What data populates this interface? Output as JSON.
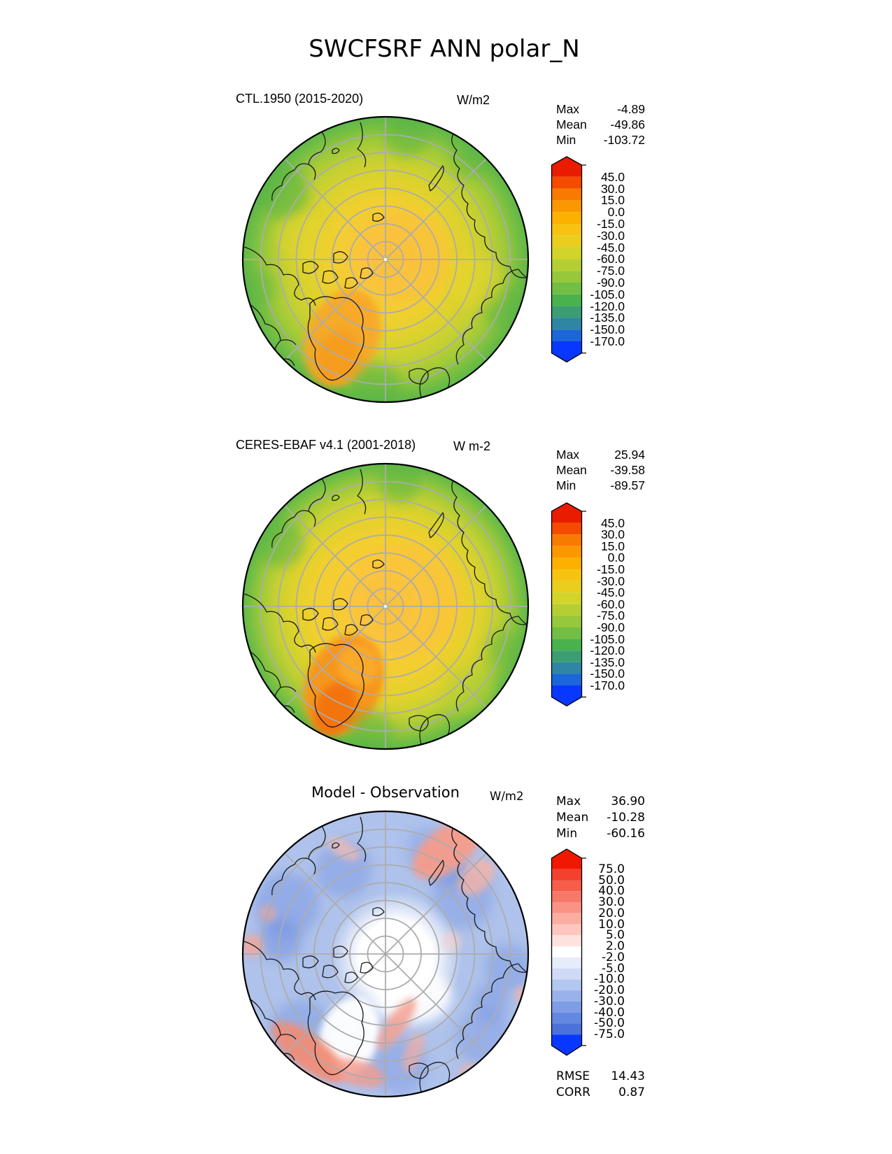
{
  "title": "SWCFSRF ANN polar_N",
  "panels": [
    {
      "id": "model",
      "title": "CTL.1950 (2015-2020)",
      "units": "W/m2",
      "stats": [
        {
          "label": "Max",
          "value": "-4.89"
        },
        {
          "label": "Mean",
          "value": "-49.86"
        },
        {
          "label": "Min",
          "value": "-103.72"
        }
      ],
      "colorbar": {
        "ticks": [
          "45.0",
          "30.0",
          "15.0",
          "0.0",
          "-15.0",
          "-30.0",
          "-45.0",
          "-60.0",
          "-75.0",
          "-90.0",
          "-105.0",
          "-120.0",
          "-135.0",
          "-150.0",
          "-170.0"
        ],
        "colors": [
          "#EA1C00",
          "#F44B00",
          "#F97A00",
          "#FB9700",
          "#FCB100",
          "#F7C313",
          "#E9CE1E",
          "#D2D42A",
          "#B5CF33",
          "#97C83B",
          "#72BE44",
          "#4AB24D",
          "#3B9E73",
          "#2E86A4",
          "#1B67D9",
          "#0838FF"
        ]
      }
    },
    {
      "id": "observation",
      "title": "CERES-EBAF v4.1 (2001-2018)",
      "units": "W m-2",
      "stats": [
        {
          "label": "Max",
          "value": "25.94"
        },
        {
          "label": "Mean",
          "value": "-39.58"
        },
        {
          "label": "Min",
          "value": "-89.57"
        }
      ],
      "colorbar": {
        "ticks": [
          "45.0",
          "30.0",
          "15.0",
          "0.0",
          "-15.0",
          "-30.0",
          "-45.0",
          "-60.0",
          "-75.0",
          "-90.0",
          "-105.0",
          "-120.0",
          "-135.0",
          "-150.0",
          "-170.0"
        ],
        "colors": [
          "#EA1C00",
          "#F44B00",
          "#F97A00",
          "#FB9700",
          "#FCB100",
          "#F7C313",
          "#E9CE1E",
          "#D2D42A",
          "#B5CF33",
          "#97C83B",
          "#72BE44",
          "#4AB24D",
          "#3B9E73",
          "#2E86A4",
          "#1B67D9",
          "#0838FF"
        ]
      }
    },
    {
      "id": "difference",
      "title": "Model - Observation",
      "units": "W/m2",
      "stats": [
        {
          "label": "Max",
          "value": "36.90"
        },
        {
          "label": "Mean",
          "value": "-10.28"
        },
        {
          "label": "Min",
          "value": "-60.16"
        }
      ],
      "colorbar": {
        "ticks": [
          "75.0",
          "50.0",
          "40.0",
          "30.0",
          "20.0",
          "10.0",
          "5.0",
          "2.0",
          "-2.0",
          "-5.0",
          "-10.0",
          "-20.0",
          "-30.0",
          "-40.0",
          "-50.0",
          "-75.0"
        ],
        "colors": [
          "#F01800",
          "#F4402F",
          "#F65D4B",
          "#F87868",
          "#FA9386",
          "#FBADA2",
          "#FDC7BF",
          "#FEE2DD",
          "#FFFFFF",
          "#E6ECFA",
          "#CFDBF6",
          "#B4C7F0",
          "#99B2EB",
          "#7E9DE5",
          "#6388E0",
          "#4A72DA",
          "#0838FF"
        ],
        "metrics": [
          {
            "label": "RMSE",
            "value": "14.43"
          },
          {
            "label": "CORR",
            "value": "0.87"
          }
        ]
      }
    }
  ],
  "chart_data": [
    {
      "type": "heatmap",
      "subtype": "north-polar stereographic contour map",
      "figure_title": "SWCFSRF ANN polar_N",
      "variable": "SWCFSRF",
      "season": "ANN",
      "region": "polar_N",
      "panel": "model",
      "title": "CTL.1950 (2015-2020)",
      "units": "W/m2",
      "stats": {
        "max": -4.89,
        "mean": -49.86,
        "min": -103.72
      },
      "levels": [
        45.0,
        30.0,
        15.0,
        0.0,
        -15.0,
        -30.0,
        -45.0,
        -60.0,
        -75.0,
        -90.0,
        -105.0,
        -120.0,
        -135.0,
        -150.0,
        -170.0
      ],
      "palette": "rainbow red(high)->yellow->green->blue(low), extended both ends",
      "description": "Arctic map: amber/orange (~-30 to -45) over central Arctic Ocean and Greenland, yellow mid-latitudes, green (~-60 to -90) toward outer rim"
    },
    {
      "type": "heatmap",
      "subtype": "north-polar stereographic contour map",
      "panel": "observation",
      "title": "CERES-EBAF v4.1 (2001-2018)",
      "units": "W m-2",
      "stats": {
        "max": 25.94,
        "mean": -39.58,
        "min": -89.57
      },
      "levels": [
        45.0,
        30.0,
        15.0,
        0.0,
        -15.0,
        -30.0,
        -45.0,
        -60.0,
        -75.0,
        -90.0,
        -105.0,
        -120.0,
        -135.0,
        -150.0,
        -170.0
      ],
      "palette": "rainbow red(high)->yellow->green->blue(low), extended both ends",
      "description": "Similar to model but Greenland distinctly orange (~-15 to 0) and broader amber over Arctic Ocean; green ring at rim"
    },
    {
      "type": "heatmap",
      "subtype": "north-polar stereographic difference map",
      "panel": "difference",
      "title": "Model - Observation",
      "units": "W/m2",
      "stats": {
        "max": 36.9,
        "mean": -10.28,
        "min": -60.16
      },
      "metrics": {
        "rmse": 14.43,
        "corr": 0.87
      },
      "levels": [
        75.0,
        50.0,
        40.0,
        30.0,
        20.0,
        10.0,
        5.0,
        2.0,
        -2.0,
        -5.0,
        -10.0,
        -20.0,
        -30.0,
        -40.0,
        -50.0,
        -75.0
      ],
      "palette": "diverging red(positive)-white-blue(negative), extended both ends",
      "description": "Mostly light-blue negative bias (-5 to -30); white near pole and over Greenland; salmon positive patches over NE Siberia, North Atlantic south of Greenland and scattered rim areas"
    }
  ]
}
